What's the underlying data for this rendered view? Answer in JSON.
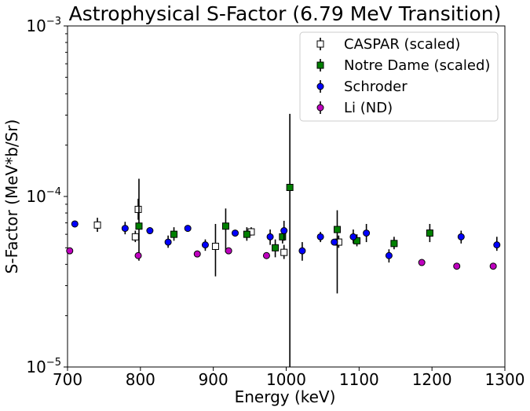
{
  "chart_data": {
    "type": "scatter",
    "title": "Astrophysical S-Factor (6.79 MeV Transition)",
    "xlabel": "Energy (keV)",
    "ylabel": "S-Factor (MeV*b/Sr)",
    "x_scale": "linear",
    "y_scale": "log",
    "xlim": [
      700,
      1300
    ],
    "ylim": [
      1e-05,
      0.001
    ],
    "x_ticks": [
      700,
      800,
      900,
      1000,
      1100,
      1200,
      1300
    ],
    "y_ticks": [
      {
        "value": 1e-05,
        "base": "10",
        "exp": "−5"
      },
      {
        "value": 0.0001,
        "base": "10",
        "exp": "−4"
      },
      {
        "value": 0.001,
        "base": "10",
        "exp": "−3"
      }
    ],
    "grid": false,
    "legend_position": "top-right",
    "series": [
      {
        "name": "CASPAR (scaled)",
        "marker": "square",
        "color": "#ffffff",
        "edge": "#000000",
        "points": [
          {
            "x": 741,
            "y": 6.8e-05,
            "lo": 6.2e-05,
            "hi": 7.5e-05
          },
          {
            "x": 793,
            "y": 5.8e-05,
            "lo": 5.4e-05,
            "hi": 6.3e-05
          },
          {
            "x": 797,
            "y": 8.4e-05,
            "lo": 7.3e-05,
            "hi": 9.7e-05
          },
          {
            "x": 903,
            "y": 5.1e-05,
            "lo": 3.4e-05,
            "hi": 6.9e-05
          },
          {
            "x": 952,
            "y": 6.2e-05,
            "lo": 5.9e-05,
            "hi": 6.6e-05
          },
          {
            "x": 997,
            "y": 4.7e-05,
            "lo": 4.3e-05,
            "hi": 5.2e-05
          },
          {
            "x": 1072,
            "y": 5.4e-05,
            "lo": 5e-05,
            "hi": 5.9e-05
          }
        ]
      },
      {
        "name": "Notre Dame (scaled)",
        "marker": "square",
        "color": "#008000",
        "edge": "#000000",
        "points": [
          {
            "x": 798,
            "y": 6.7e-05,
            "lo": 4.2e-05,
            "hi": 0.000127
          },
          {
            "x": 846,
            "y": 6e-05,
            "lo": 5.5e-05,
            "hi": 6.6e-05
          },
          {
            "x": 917,
            "y": 6.7e-05,
            "lo": 4.7e-05,
            "hi": 8.5e-05
          },
          {
            "x": 946,
            "y": 6e-05,
            "lo": 5.5e-05,
            "hi": 6.6e-05
          },
          {
            "x": 985,
            "y": 5e-05,
            "lo": 4.4e-05,
            "hi": 5.6e-05
          },
          {
            "x": 995,
            "y": 5.8e-05,
            "lo": 5.3e-05,
            "hi": 6.4e-05
          },
          {
            "x": 1005,
            "y": 0.000113,
            "lo": 1e-05,
            "hi": 0.000305
          },
          {
            "x": 1070,
            "y": 6.4e-05,
            "lo": 2.7e-05,
            "hi": 8.3e-05
          },
          {
            "x": 1097,
            "y": 5.5e-05,
            "lo": 5.1e-05,
            "hi": 6e-05
          },
          {
            "x": 1148,
            "y": 5.3e-05,
            "lo": 4.9e-05,
            "hi": 5.8e-05
          },
          {
            "x": 1197,
            "y": 6.1e-05,
            "lo": 5.4e-05,
            "hi": 6.9e-05
          }
        ]
      },
      {
        "name": "Schroder",
        "marker": "circle",
        "color": "#0000ff",
        "edge": "#000000",
        "points": [
          {
            "x": 710,
            "y": 6.9e-05,
            "lo": 6.6e-05,
            "hi": 7.2e-05
          },
          {
            "x": 779,
            "y": 6.5e-05,
            "lo": 6e-05,
            "hi": 7.1e-05
          },
          {
            "x": 813,
            "y": 6.3e-05,
            "lo": 6.1e-05,
            "hi": 6.5e-05
          },
          {
            "x": 838,
            "y": 5.4e-05,
            "lo": 5e-05,
            "hi": 5.9e-05
          },
          {
            "x": 865,
            "y": 6.5e-05,
            "lo": 6.3e-05,
            "hi": 6.7e-05
          },
          {
            "x": 889,
            "y": 5.2e-05,
            "lo": 4.8e-05,
            "hi": 5.6e-05
          },
          {
            "x": 930,
            "y": 6.1e-05,
            "lo": 5.9e-05,
            "hi": 6.3e-05
          },
          {
            "x": 978,
            "y": 5.8e-05,
            "lo": 5.2e-05,
            "hi": 6.4e-05
          },
          {
            "x": 997,
            "y": 6.3e-05,
            "lo": 5.5e-05,
            "hi": 7.2e-05
          },
          {
            "x": 1022,
            "y": 4.8e-05,
            "lo": 4.2e-05,
            "hi": 5.4e-05
          },
          {
            "x": 1047,
            "y": 5.8e-05,
            "lo": 5.4e-05,
            "hi": 6.2e-05
          },
          {
            "x": 1066,
            "y": 5.4e-05,
            "lo": 5.2e-05,
            "hi": 5.6e-05
          },
          {
            "x": 1092,
            "y": 5.8e-05,
            "lo": 5.3e-05,
            "hi": 6.4e-05
          },
          {
            "x": 1110,
            "y": 6.1e-05,
            "lo": 5.4e-05,
            "hi": 6.9e-05
          },
          {
            "x": 1141,
            "y": 4.5e-05,
            "lo": 4.1e-05,
            "hi": 4.9e-05
          },
          {
            "x": 1240,
            "y": 5.8e-05,
            "lo": 5.3e-05,
            "hi": 6.3e-05
          },
          {
            "x": 1289,
            "y": 5.2e-05,
            "lo": 4.8e-05,
            "hi": 5.8e-05
          }
        ]
      },
      {
        "name": "Li (ND)",
        "marker": "circle",
        "color": "#bf00bf",
        "edge": "#000000",
        "points": [
          {
            "x": 703,
            "y": 4.8e-05
          },
          {
            "x": 797,
            "y": 4.5e-05
          },
          {
            "x": 878,
            "y": 4.6e-05
          },
          {
            "x": 921,
            "y": 4.8e-05
          },
          {
            "x": 973,
            "y": 4.5e-05
          },
          {
            "x": 1186,
            "y": 4.1e-05
          },
          {
            "x": 1234,
            "y": 3.9e-05
          },
          {
            "x": 1284,
            "y": 3.9e-05
          }
        ]
      }
    ]
  }
}
